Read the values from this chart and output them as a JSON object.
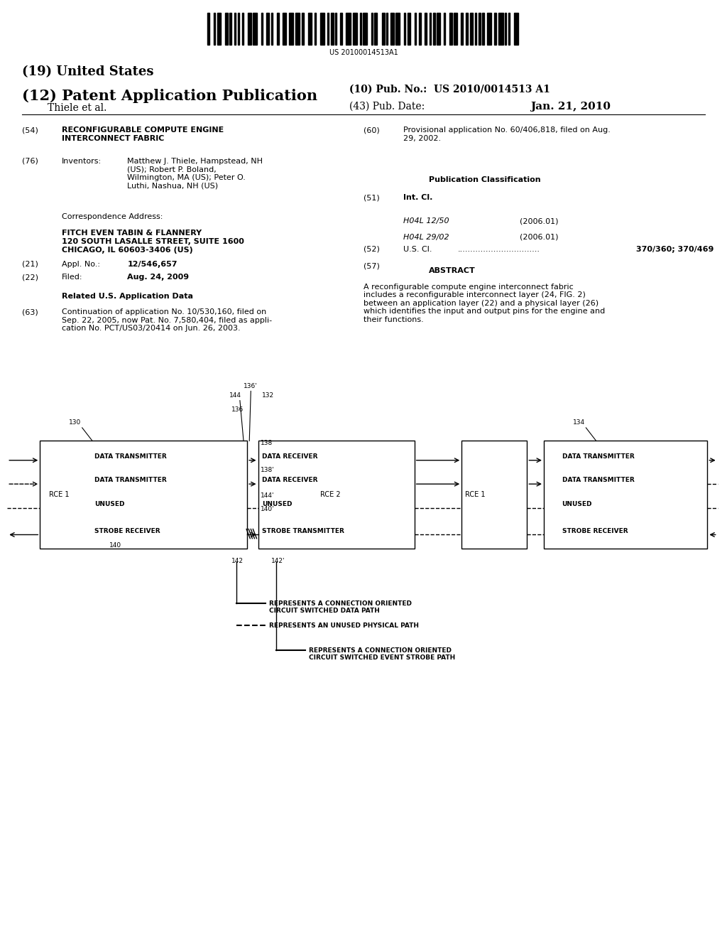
{
  "bg_color": "#ffffff",
  "barcode_text": "US 20100014513A1",
  "title_19": "(19) United States",
  "title_12": "(12) Patent Application Publication",
  "pub_no_val": "US 2010/0014513 A1",
  "inventors_label": "Thiele et al.",
  "pub_date_label": "(43) Pub. Date:",
  "pub_date_val": "Jan. 21, 2010",
  "section54_title": "RECONFIGURABLE COMPUTE ENGINE\nINTERCONNECT FABRIC",
  "section76_text": "Matthew J. Thiele, Hampstead, NH\n(US); Robert P. Boland,\nWilmington, MA (US); Peter O.\nLuthi, Nashua, NH (US)",
  "corr_addr_text": "FITCH EVEN TABIN & FLANNERY\n120 SOUTH LASALLE STREET, SUITE 1600\nCHICAGO, IL 60603-3406 (US)",
  "section21_val": "12/546,657",
  "section22_val": "Aug. 24, 2009",
  "section63_text": "Continuation of application No. 10/530,160, filed on\nSep. 22, 2005, now Pat. No. 7,580,404, filed as appli-\ncation No. PCT/US03/20414 on Jun. 26, 2003.",
  "section60_text": "Provisional application No. 60/406,818, filed on Aug.\n29, 2002.",
  "section51_class1": "H04L 12/50",
  "section51_year1": "(2006.01)",
  "section51_class2": "H04L 29/02",
  "section51_year2": "(2006.01)",
  "section52_val": "370/360; 370/469",
  "section57_text": "A reconfigurable compute engine interconnect fabric\nincludes a reconfigurable interconnect layer (24, FIG. 2)\nbetween an application layer (22) and a physical layer (26)\nwhich identifies the input and output pins for the engine and\ntheir functions."
}
